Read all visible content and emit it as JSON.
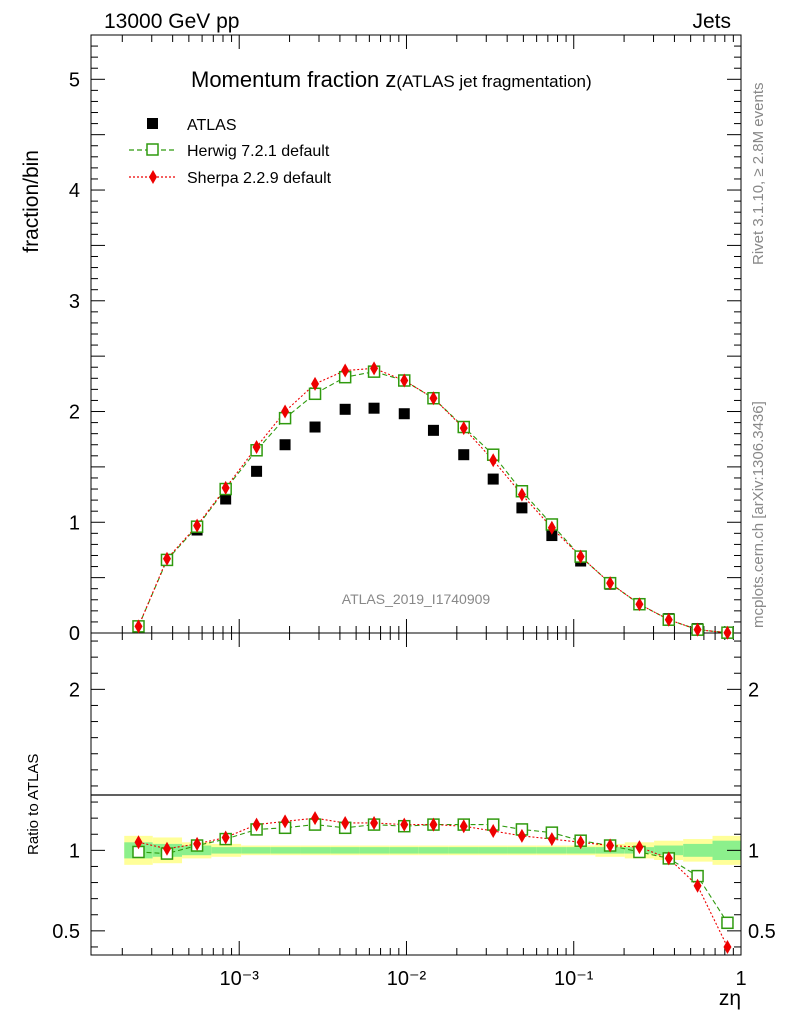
{
  "header": {
    "left": "13000 GeV pp",
    "right": "Jets"
  },
  "chart_data": {
    "type": "scatter",
    "title_main": "Momentum fraction z",
    "title_sub": "(ATLAS jet fragmentation)",
    "xlabel": "zη",
    "ylabel": "fraction/bin",
    "ratio_ylabel": "Ratio to ATLAS",
    "watermark": "ATLAS_2019_I1740909",
    "side_top": "Rivet 3.1.10, ≥ 2.8M events",
    "side_bottom": "mcplots.cern.ch [arXiv:1306.3436]",
    "xscale": "log",
    "xlim": [
      0.00013,
      1.0
    ],
    "ylim": [
      0,
      5.4
    ],
    "ratio_ylim": [
      0.35,
      2.35
    ],
    "x_tick_labels": [
      "10⁻³",
      "10⁻²",
      "10⁻¹",
      "1"
    ],
    "y_tick_labels": [
      "0",
      "1",
      "2",
      "3",
      "4",
      "5"
    ],
    "ratio_tick_labels": [
      "0.5",
      "1",
      "2"
    ],
    "legend_position": "top-left",
    "x": [
      0.00025,
      0.00037,
      0.00056,
      0.00083,
      0.00127,
      0.00188,
      0.00284,
      0.0043,
      0.0064,
      0.0097,
      0.0145,
      0.022,
      0.033,
      0.049,
      0.074,
      0.11,
      0.165,
      0.247,
      0.37,
      0.55,
      0.83
    ],
    "series": [
      {
        "name": "ATLAS",
        "marker": "square",
        "color": "#000000",
        "values": [
          0.06,
          0.66,
          0.93,
          1.21,
          1.46,
          1.7,
          1.86,
          2.02,
          2.03,
          1.98,
          1.83,
          1.61,
          1.39,
          1.13,
          0.88,
          0.65,
          0.44,
          0.26,
          0.13,
          0.04,
          0.005
        ]
      },
      {
        "name": "Herwig 7.2.1 default",
        "marker": "open-square",
        "color": "#2f9a0e",
        "values": [
          0.06,
          0.66,
          0.96,
          1.3,
          1.65,
          1.94,
          2.16,
          2.31,
          2.36,
          2.28,
          2.12,
          1.86,
          1.61,
          1.28,
          0.98,
          0.69,
          0.45,
          0.26,
          0.12,
          0.03,
          0.003
        ],
        "ratio": [
          0.99,
          0.98,
          1.03,
          1.07,
          1.13,
          1.14,
          1.16,
          1.14,
          1.16,
          1.15,
          1.16,
          1.16,
          1.16,
          1.13,
          1.11,
          1.06,
          1.03,
          0.99,
          0.95,
          0.84,
          0.55
        ]
      },
      {
        "name": "Sherpa 2.2.9 default",
        "marker": "diamond",
        "color": "#ee0000",
        "values": [
          0.06,
          0.67,
          0.97,
          1.31,
          1.68,
          2.0,
          2.25,
          2.37,
          2.39,
          2.28,
          2.12,
          1.85,
          1.56,
          1.25,
          0.95,
          0.69,
          0.45,
          0.26,
          0.12,
          0.03,
          0.002
        ],
        "ratio": [
          1.05,
          1.01,
          1.04,
          1.08,
          1.16,
          1.18,
          1.2,
          1.17,
          1.17,
          1.16,
          1.16,
          1.15,
          1.12,
          1.09,
          1.07,
          1.05,
          1.03,
          1.02,
          0.95,
          0.78,
          0.4
        ]
      }
    ],
    "band_stat": [
      0.05,
      0.04,
      0.03,
      0.02,
      0.02,
      0.02,
      0.02,
      0.02,
      0.02,
      0.02,
      0.02,
      0.02,
      0.02,
      0.02,
      0.02,
      0.02,
      0.02,
      0.02,
      0.03,
      0.04,
      0.06
    ],
    "band_total": [
      0.09,
      0.08,
      0.05,
      0.04,
      0.03,
      0.03,
      0.03,
      0.03,
      0.03,
      0.03,
      0.03,
      0.03,
      0.03,
      0.03,
      0.03,
      0.03,
      0.04,
      0.05,
      0.06,
      0.07,
      0.09
    ],
    "colors": {
      "stat_band": "#8cf08c",
      "total_band": "#ffff99"
    }
  }
}
